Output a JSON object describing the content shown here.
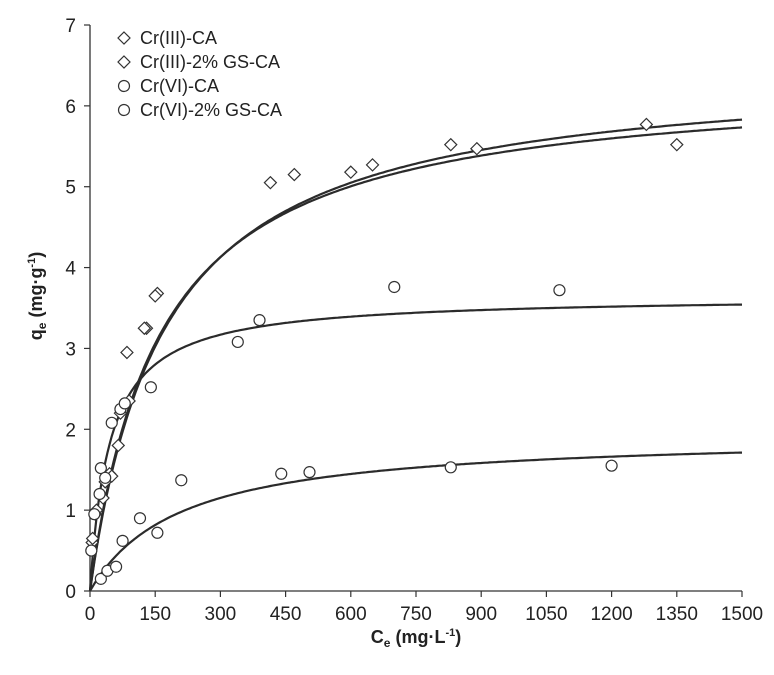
{
  "chart_data": {
    "type": "scatter",
    "title": "",
    "xlabel": {
      "main": "C",
      "sub": "e",
      "unit_pre": " (mg·L",
      "unit_sup": "-1",
      "unit_post": ")"
    },
    "ylabel": {
      "main": "q",
      "sub": "e",
      "unit_pre": " (mg·g",
      "unit_sup": "-1",
      "unit_post": ")"
    },
    "xlim": [
      0,
      1500
    ],
    "ylim": [
      0,
      7
    ],
    "xticks": [
      0,
      150,
      300,
      450,
      600,
      750,
      900,
      1050,
      1200,
      1350,
      1500
    ],
    "yticks": [
      0,
      1,
      2,
      3,
      4,
      5,
      6,
      7
    ],
    "grid": false,
    "legend_position": "top-left",
    "series": [
      {
        "name": "Cr(III)-CA",
        "marker": "diamond",
        "points": [
          [
            5,
            0.6
          ],
          [
            12,
            0.95
          ],
          [
            30,
            1.15
          ],
          [
            45,
            1.45
          ],
          [
            65,
            1.8
          ],
          [
            90,
            2.35
          ],
          [
            130,
            3.25
          ],
          [
            155,
            3.68
          ],
          [
            415,
            5.05
          ],
          [
            470,
            5.15
          ],
          [
            600,
            5.18
          ],
          [
            650,
            5.27
          ],
          [
            830,
            5.52
          ],
          [
            890,
            5.47
          ],
          [
            1280,
            5.77
          ],
          [
            1350,
            5.52
          ]
        ]
      },
      {
        "name": "Cr(III)-2% GS-CA",
        "marker": "diamond",
        "points": [
          [
            6,
            0.65
          ],
          [
            15,
            1.0
          ],
          [
            35,
            1.35
          ],
          [
            50,
            1.42
          ],
          [
            70,
            2.2
          ],
          [
            85,
            2.95
          ],
          [
            125,
            3.25
          ],
          [
            150,
            3.65
          ]
        ]
      },
      {
        "name": "Cr(VI)-CA",
        "marker": "circle",
        "points": [
          [
            3,
            0.5
          ],
          [
            10,
            0.95
          ],
          [
            22,
            1.2
          ],
          [
            25,
            1.52
          ],
          [
            35,
            1.4
          ],
          [
            50,
            2.08
          ],
          [
            70,
            2.25
          ],
          [
            80,
            2.32
          ],
          [
            140,
            2.52
          ],
          [
            340,
            3.08
          ],
          [
            390,
            3.35
          ],
          [
            700,
            3.76
          ],
          [
            1080,
            3.72
          ]
        ]
      },
      {
        "name": "Cr(VI)-2% GS-CA",
        "marker": "circle",
        "points": [
          [
            25,
            0.15
          ],
          [
            40,
            0.25
          ],
          [
            60,
            0.3
          ],
          [
            75,
            0.62
          ],
          [
            115,
            0.9
          ],
          [
            155,
            0.72
          ],
          [
            210,
            1.37
          ],
          [
            440,
            1.45
          ],
          [
            505,
            1.47
          ],
          [
            830,
            1.53
          ],
          [
            1200,
            1.55
          ]
        ]
      }
    ],
    "fit_curves": [
      {
        "model": "Langmuir",
        "qmax": 6.5,
        "KL": 0.0058
      },
      {
        "model": "Langmuir",
        "qmax": 6.35,
        "KL": 0.0062
      },
      {
        "model": "Langmuir",
        "qmax": 3.65,
        "KL": 0.022
      },
      {
        "model": "Langmuir",
        "qmax": 1.95,
        "KL": 0.0048
      }
    ]
  }
}
